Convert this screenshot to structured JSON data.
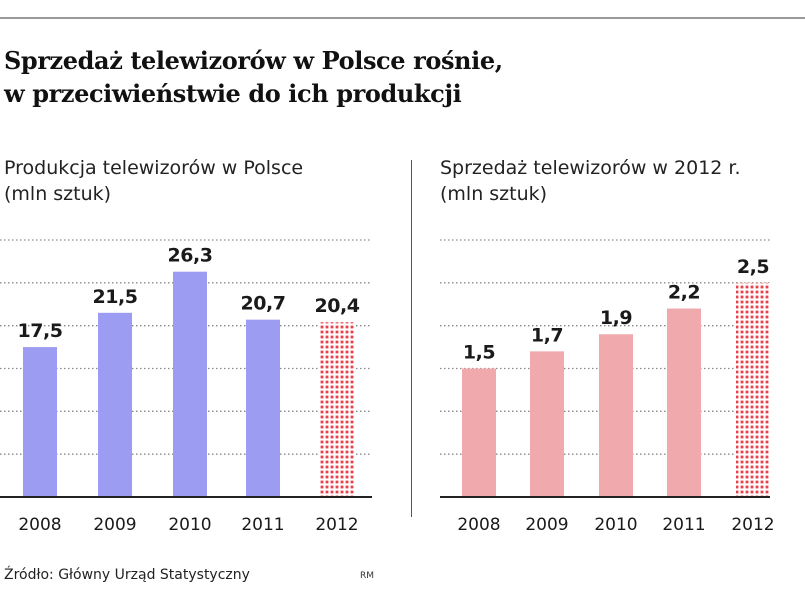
{
  "header": {
    "title_line1": "Sprzedaż telewizorów w Polsce rośnie,",
    "title_line2": "w przeciwieństwie do ich produkcji"
  },
  "footer": {
    "source": "Źródło: Główny Urząd Statystyczny",
    "credit": "RM"
  },
  "colors": {
    "production_bar": "#9c9cf2",
    "sales_bar": "#f0a9ad",
    "forecast_dots": "#e8414b",
    "gridline": "#8a8a8a",
    "baseline": "#222222"
  },
  "chart_data": [
    {
      "type": "bar",
      "title": "Produkcja telewizorów w Polsce",
      "subtitle": "(mln sztuk)",
      "categories": [
        "2008",
        "2009",
        "2010",
        "2011",
        "2012"
      ],
      "values": [
        17.5,
        21.5,
        26.3,
        20.7,
        20.4
      ],
      "value_labels": [
        "17,5",
        "21,5",
        "26,3",
        "20,7",
        "20,4"
      ],
      "estimated_last": true,
      "ylim": [
        0,
        30
      ],
      "grid": true
    },
    {
      "type": "bar",
      "title": "Sprzedaż telewizorów w 2012 r.",
      "subtitle": "(mln sztuk)",
      "categories": [
        "2008",
        "2009",
        "2010",
        "2011",
        "2012"
      ],
      "values": [
        1.5,
        1.7,
        1.9,
        2.2,
        2.5
      ],
      "value_labels": [
        "1,5",
        "1,7",
        "1,9",
        "2,2",
        "2,5"
      ],
      "estimated_last": true,
      "ylim": [
        0,
        3
      ],
      "grid": true
    }
  ]
}
